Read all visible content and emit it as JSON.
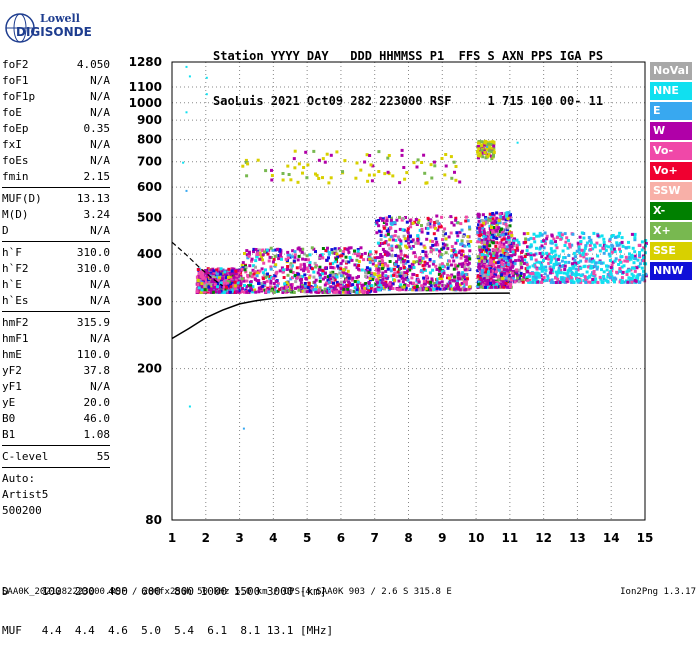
{
  "logo": {
    "line1": "Lowell",
    "line2": "DIGISONDE"
  },
  "header": {
    "labels": "Station YYYY DAY   DDD HHMMSS P1  FFS S AXN PPS IGA PS",
    "values": "SaoLuis 2021 Oct09 282 223000 RSF     1 715 100 00- 11"
  },
  "params": [
    {
      "label": "foF2",
      "value": "4.050"
    },
    {
      "label": "foF1",
      "value": "N/A"
    },
    {
      "label": "foF1p",
      "value": "N/A"
    },
    {
      "label": "foE",
      "value": "N/A"
    },
    {
      "label": "foEp",
      "value": "0.35"
    },
    {
      "label": "fxI",
      "value": "N/A"
    },
    {
      "label": "foEs",
      "value": "N/A"
    },
    {
      "label": "fmin",
      "value": "2.15"
    },
    {
      "label": "MUF(D)",
      "value": "13.13"
    },
    {
      "label": "M(D)",
      "value": "3.24"
    },
    {
      "label": "D",
      "value": "N/A"
    },
    {
      "label": "h`F",
      "value": "310.0"
    },
    {
      "label": "h`F2",
      "value": "310.0"
    },
    {
      "label": "h`E",
      "value": "N/A"
    },
    {
      "label": "h`Es",
      "value": "N/A"
    },
    {
      "label": "hmF2",
      "value": "315.9"
    },
    {
      "label": "hmF1",
      "value": "N/A"
    },
    {
      "label": "hmE",
      "value": "110.0"
    },
    {
      "label": "yF2",
      "value": "37.8"
    },
    {
      "label": "yF1",
      "value": "N/A"
    },
    {
      "label": "yE",
      "value": "20.0"
    },
    {
      "label": "B0",
      "value": "46.0"
    },
    {
      "label": "B1",
      "value": "1.08"
    },
    {
      "label": "C-level",
      "value": "55"
    },
    {
      "label": "Auto:",
      "value": ""
    },
    {
      "label": "Artist5",
      "value": ""
    },
    {
      "label": "500200",
      "value": ""
    }
  ],
  "legend": [
    {
      "label": "NoVal",
      "color": "#a8a8a8"
    },
    {
      "label": "NNE",
      "color": "#10e0f0"
    },
    {
      "label": "E",
      "color": "#38a8f0"
    },
    {
      "label": "W",
      "color": "#b000a8"
    },
    {
      "label": "Vo-",
      "color": "#f048a8"
    },
    {
      "label": "Vo+",
      "color": "#f00030"
    },
    {
      "label": "SSW",
      "color": "#f8b0a8"
    },
    {
      "label": "X-",
      "color": "#008000"
    },
    {
      "label": "X+",
      "color": "#78b850"
    },
    {
      "label": "SSE",
      "color": "#d8d000"
    },
    {
      "label": "NNW",
      "color": "#1010d8"
    }
  ],
  "footer": {
    "d_row": "D     100  200  400  600  800 1000 1500 3000 [km]",
    "muf_row": "MUF   4.4  4.4  4.6  5.0  5.4  6.1  8.1 13.1 [MHz]",
    "bottom": "SAA0K_2021282223000.RSF / 280fx256h 50 kHz 5.0 km / DPS-4 SAA0K 903 / 2.6 S 315.8 E",
    "version": "Ion2Png 1.3.17"
  },
  "chart_data": {
    "type": "scatter",
    "title": "",
    "xlabel": "",
    "ylabel": "",
    "xlim": [
      1,
      15
    ],
    "y_axis_scale": "log",
    "ylim": [
      80,
      1280
    ],
    "x_ticks": [
      1,
      2,
      3,
      4,
      5,
      6,
      7,
      8,
      9,
      10,
      11,
      12,
      13,
      14,
      15
    ],
    "y_ticks": [
      80,
      200,
      300,
      400,
      500,
      600,
      700,
      800,
      900,
      1000,
      1100,
      1280
    ],
    "grid": true,
    "legend_position": "right",
    "series": [
      {
        "name": "ionogram_echoes",
        "regions": [
          {
            "f": [
              1.7,
              3.0
            ],
            "h": [
              320,
              370
            ]
          },
          {
            "f": [
              3.0,
              7.0
            ],
            "h": [
              320,
              420
            ]
          },
          {
            "f": [
              7.0,
              9.8
            ],
            "h": [
              325,
              510
            ]
          },
          {
            "f": [
              10.0,
              11.0
            ],
            "h": [
              330,
              520
            ]
          },
          {
            "f": [
              11.0,
              15.0
            ],
            "h": [
              340,
              460
            ]
          },
          {
            "f": [
              3.0,
              9.6
            ],
            "h": [
              620,
              760
            ]
          },
          {
            "f": [
              10.0,
              10.5
            ],
            "h": [
              720,
              800
            ]
          }
        ]
      },
      {
        "name": "profile_curve",
        "x": [
          1.0,
          1.5,
          2.0,
          2.5,
          3.0,
          3.5,
          4.0,
          5.0,
          6.0,
          7.0,
          8.0,
          9.0,
          10.0,
          11.0
        ],
        "y": [
          240,
          255,
          272,
          285,
          296,
          302,
          306,
          310,
          312,
          313,
          314,
          315,
          315.5,
          315.9
        ]
      },
      {
        "name": "trace_dashed",
        "x": [
          1.0,
          1.4,
          1.8,
          2.2,
          2.5
        ],
        "y": [
          430,
          400,
          370,
          345,
          330
        ]
      }
    ]
  }
}
